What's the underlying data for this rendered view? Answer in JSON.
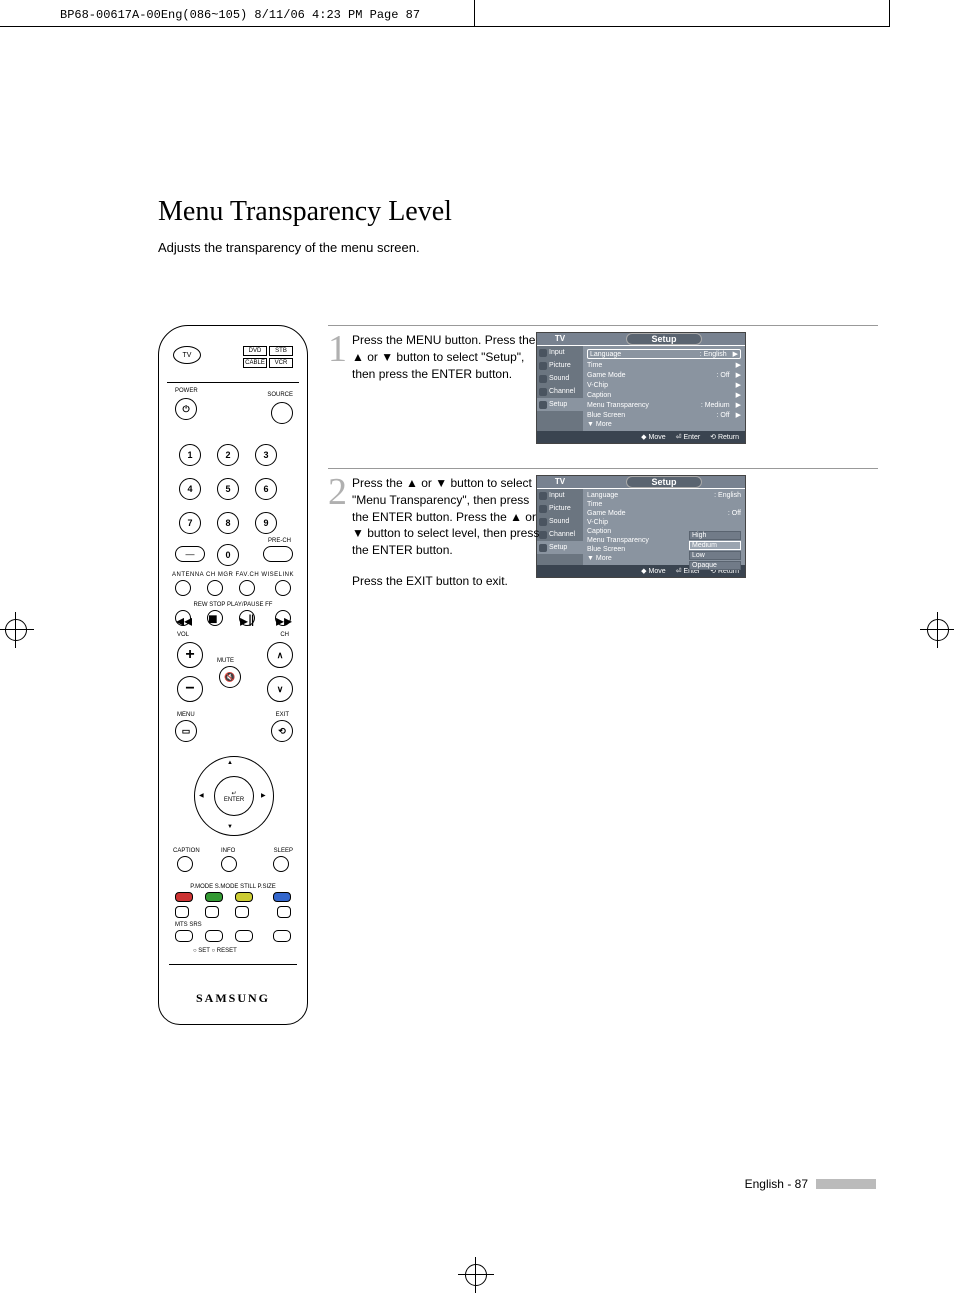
{
  "meta_header": "BP68-00617A-00Eng(086~105)  8/11/06  4:23 PM  Page 87",
  "title": "Menu Transparency Level",
  "intro": "Adjusts the transparency of the menu screen.",
  "remote": {
    "tv": "TV",
    "boxes": [
      "DVD",
      "STB",
      "CABLE",
      "VCR"
    ],
    "power": "POWER",
    "source": "SOURCE",
    "numbers": [
      "1",
      "2",
      "3",
      "4",
      "5",
      "6",
      "7",
      "8",
      "9",
      "0"
    ],
    "dash": "—",
    "prech": "PRE-CH",
    "row_labels": "ANTENNA  CH MGR  FAV.CH  WISELINK",
    "transport": "REW     STOP   PLAY/PAUSE   FF",
    "vol": "VOL",
    "ch": "CH",
    "mute": "MUTE",
    "menu": "MENU",
    "exit": "EXIT",
    "enter": "ENTER",
    "enter_icon": "↵",
    "caption": "CAPTION",
    "info": "INFO",
    "sleep": "SLEEP",
    "pmode": "P.MODE  S.MODE   STILL   P.SIZE",
    "mts_srs": "MTS      SRS",
    "set_reset": "○ SET     ○ RESET",
    "brand": "SAMSUNG"
  },
  "steps": [
    {
      "num": "1",
      "text": "Press the MENU button.\nPress the ▲ or ▼ button to select \"Setup\", then press the ENTER button."
    },
    {
      "num": "2",
      "text_a": "Press the ▲ or ▼ button to select \"Menu Transparency\", then press the ENTER button.\nPress the ▲ or ▼ button to select level, then press the ENTER button.",
      "text_b": "Press the EXIT button to exit."
    }
  ],
  "osd": {
    "tv": "TV",
    "title": "Setup",
    "side": [
      "Input",
      "Picture",
      "Sound",
      "Channel",
      "Setup"
    ],
    "rows1": [
      {
        "l": "Language",
        "v": ": English",
        "a": "▶"
      },
      {
        "l": "Time",
        "v": "",
        "a": "▶"
      },
      {
        "l": "Game Mode",
        "v": ": Off",
        "a": "▶"
      },
      {
        "l": "V-Chip",
        "v": "",
        "a": "▶"
      },
      {
        "l": "Caption",
        "v": "",
        "a": "▶"
      },
      {
        "l": "Menu Transparency",
        "v": ": Medium",
        "a": "▶"
      },
      {
        "l": "Blue Screen",
        "v": ": Off",
        "a": "▶"
      },
      {
        "l": "▼ More",
        "v": "",
        "a": ""
      }
    ],
    "rows2": [
      {
        "l": "Language",
        "v": ": English"
      },
      {
        "l": "Time",
        "v": ""
      },
      {
        "l": "Game Mode",
        "v": ": Off"
      },
      {
        "l": "V-Chip",
        "v": ""
      },
      {
        "l": "Caption",
        "v": ""
      },
      {
        "l": "Menu Transparency",
        "v": ""
      },
      {
        "l": "Blue Screen",
        "v": ""
      },
      {
        "l": "▼ More",
        "v": ""
      }
    ],
    "opts": [
      "High",
      "Medium",
      "Low",
      "Opaque"
    ],
    "opt_selected": 1,
    "foot_move": "Move",
    "foot_enter": "Enter",
    "foot_return": "Return",
    "row1_selected": 0
  },
  "footer": "English - 87"
}
